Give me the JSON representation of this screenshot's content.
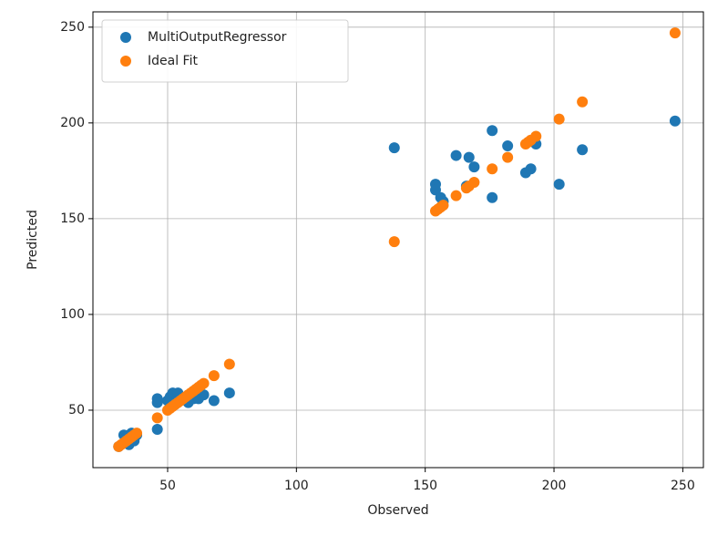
{
  "chart_data": {
    "type": "scatter",
    "x_label": "Observed",
    "y_label": "Predicted",
    "xlim": [
      21,
      258
    ],
    "ylim": [
      20,
      258
    ],
    "xticks": [
      50,
      100,
      150,
      200,
      250
    ],
    "yticks": [
      50,
      100,
      150,
      200,
      250
    ],
    "grid": true,
    "legend": "upper-left",
    "series": [
      {
        "name": "MultiOutputRegressor",
        "color": "#1f77b4",
        "x": [
          31,
          33,
          34,
          35,
          35,
          36,
          37,
          38,
          46,
          46,
          46,
          50,
          51,
          52,
          54,
          55,
          57,
          58,
          60,
          62,
          64,
          68,
          74,
          138,
          154,
          154,
          156,
          157,
          162,
          166,
          167,
          169,
          176,
          176,
          182,
          189,
          191,
          193,
          202,
          211,
          247
        ],
        "values": [
          31,
          37,
          33,
          37,
          32,
          38,
          34,
          37,
          40,
          56,
          54,
          55,
          57,
          59,
          59,
          56,
          56,
          54,
          56,
          56,
          58,
          55,
          59,
          187,
          168,
          165,
          161,
          159,
          183,
          167,
          182,
          177,
          196,
          161,
          188,
          174,
          176,
          189,
          168,
          186,
          201
        ]
      },
      {
        "name": "Ideal Fit",
        "color": "#ff7f0e",
        "x": [
          31,
          32,
          33,
          34,
          35,
          36,
          37,
          38,
          46,
          50,
          51,
          52,
          53,
          54,
          55,
          56,
          57,
          58,
          59,
          60,
          61,
          62,
          63,
          64,
          68,
          74,
          138,
          154,
          155,
          156,
          157,
          162,
          166,
          167,
          169,
          176,
          182,
          189,
          190,
          191,
          193,
          202,
          211,
          247
        ],
        "values": [
          31,
          32,
          33,
          34,
          35,
          36,
          37,
          38,
          46,
          50,
          51,
          52,
          53,
          54,
          55,
          56,
          57,
          58,
          59,
          60,
          61,
          62,
          63,
          64,
          68,
          74,
          138,
          154,
          155,
          156,
          157,
          162,
          166,
          167,
          169,
          176,
          182,
          189,
          190,
          191,
          193,
          202,
          211,
          247
        ]
      }
    ]
  }
}
